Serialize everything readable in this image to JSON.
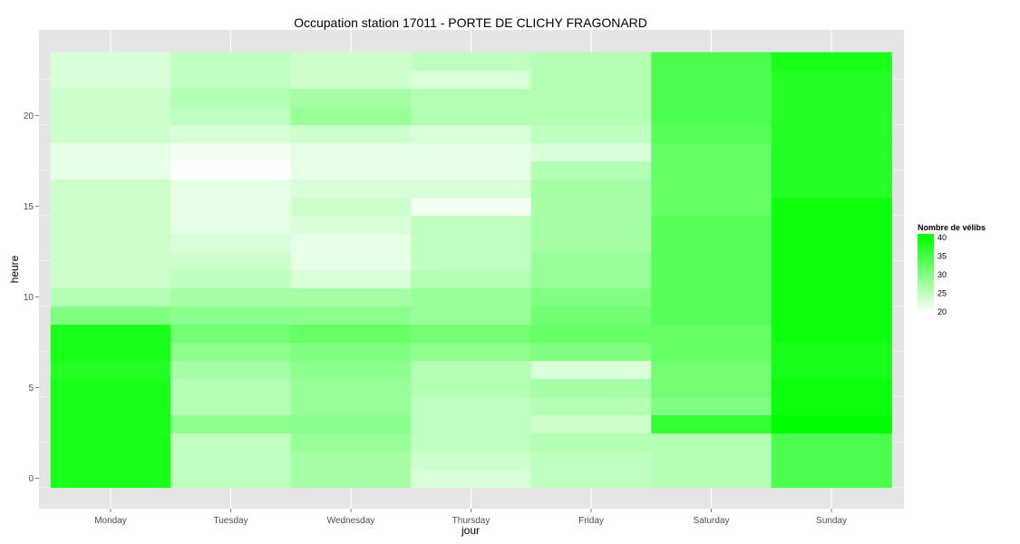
{
  "chart_data": {
    "type": "heatmap",
    "title": "Occupation station 17011 - PORTE DE CLICHY FRAGONARD",
    "xlabel": "jour",
    "ylabel": "heure",
    "x_categories": [
      "Monday",
      "Tuesday",
      "Wednesday",
      "Thursday",
      "Friday",
      "Saturday",
      "Sunday"
    ],
    "y_hours": [
      0,
      1,
      2,
      3,
      4,
      5,
      6,
      7,
      8,
      9,
      10,
      11,
      12,
      13,
      14,
      15,
      16,
      17,
      18,
      19,
      20,
      21,
      22,
      23
    ],
    "y_ticks": [
      0,
      5,
      10,
      15,
      20
    ],
    "ylim": [
      -0.5,
      23.5
    ],
    "grid": true,
    "values": [
      [
        38,
        25,
        27,
        23,
        25,
        26,
        34
      ],
      [
        38,
        25,
        27,
        24,
        25,
        26,
        34
      ],
      [
        38,
        25,
        28,
        25,
        26,
        26,
        34
      ],
      [
        38,
        29,
        29,
        25,
        24,
        36,
        41
      ],
      [
        38,
        26,
        28,
        25,
        26,
        30,
        39
      ],
      [
        38,
        26,
        28,
        26,
        27,
        31,
        39
      ],
      [
        37,
        27,
        29,
        26,
        23,
        31,
        38
      ],
      [
        38,
        29,
        30,
        29,
        30,
        32,
        38
      ],
      [
        38,
        31,
        32,
        31,
        32,
        32,
        39
      ],
      [
        30,
        29,
        29,
        28,
        31,
        33,
        39
      ],
      [
        26,
        27,
        27,
        28,
        30,
        33,
        39
      ],
      [
        24,
        25,
        23,
        26,
        28,
        33,
        39
      ],
      [
        24,
        24,
        22,
        25,
        28,
        33,
        39
      ],
      [
        24,
        23,
        22,
        25,
        27,
        33,
        39
      ],
      [
        24,
        22,
        23,
        25,
        27,
        33,
        39
      ],
      [
        24,
        22,
        24,
        21,
        27,
        32,
        39
      ],
      [
        24,
        22,
        23,
        23,
        27,
        32,
        37
      ],
      [
        22,
        20,
        22,
        22,
        26,
        32,
        37
      ],
      [
        22,
        21,
        22,
        22,
        23,
        32,
        37
      ],
      [
        24,
        23,
        24,
        23,
        25,
        33,
        37
      ],
      [
        24,
        25,
        28,
        26,
        26,
        34,
        37
      ],
      [
        24,
        26,
        27,
        26,
        26,
        34,
        37
      ],
      [
        23,
        25,
        24,
        23,
        26,
        34,
        37
      ],
      [
        23,
        25,
        24,
        25,
        26,
        34,
        38
      ]
    ],
    "legend": {
      "title": "Nombre de vélibs",
      "ticks": [
        20,
        25,
        30,
        35,
        40
      ],
      "range": [
        20,
        40
      ],
      "position": "right"
    },
    "colors": {
      "low": "#ffffff",
      "high": "#00ff00",
      "panel": "#e5e5e5",
      "grid": "#ffffff"
    }
  }
}
